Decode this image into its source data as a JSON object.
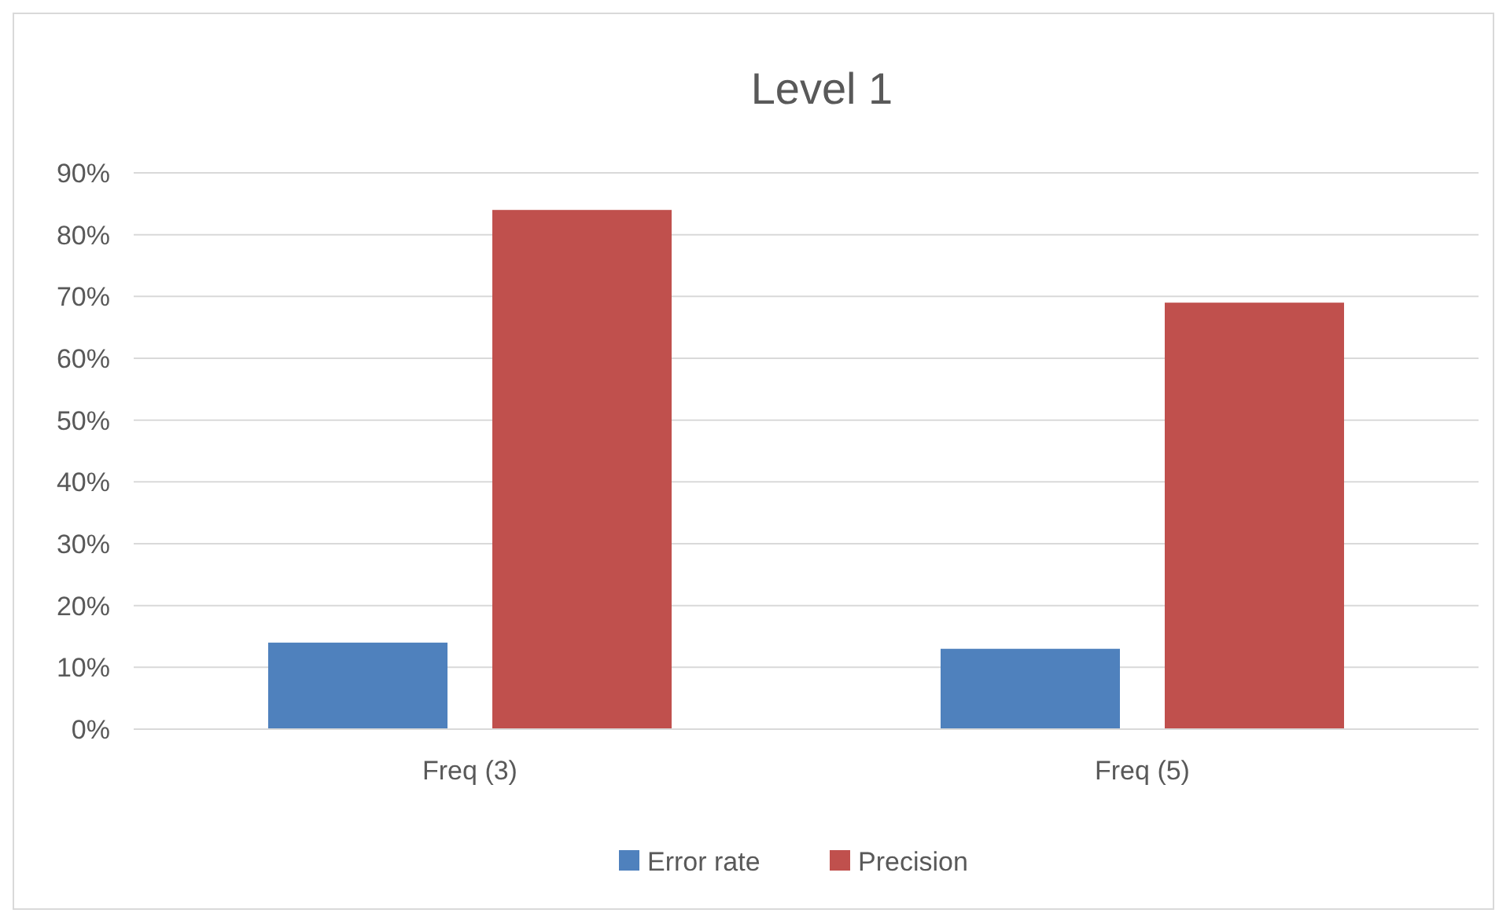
{
  "chart_data": {
    "type": "bar",
    "title": "Level 1",
    "categories": [
      "Freq (3)",
      "Freq (5)"
    ],
    "series": [
      {
        "name": "Error rate",
        "color": "#4f81bd",
        "values": [
          14,
          13
        ]
      },
      {
        "name": "Precision",
        "color": "#c0504d",
        "values": [
          84,
          69
        ]
      }
    ],
    "ylim": [
      0,
      90
    ],
    "yticks": [
      {
        "value": 0,
        "label": "0%"
      },
      {
        "value": 10,
        "label": "10%"
      },
      {
        "value": 20,
        "label": "20%"
      },
      {
        "value": 30,
        "label": "30%"
      },
      {
        "value": 40,
        "label": "40%"
      },
      {
        "value": 50,
        "label": "50%"
      },
      {
        "value": 60,
        "label": "60%"
      },
      {
        "value": 70,
        "label": "70%"
      },
      {
        "value": 80,
        "label": "80%"
      },
      {
        "value": 90,
        "label": "90%"
      }
    ],
    "grid": "y",
    "legend": "bottom"
  }
}
